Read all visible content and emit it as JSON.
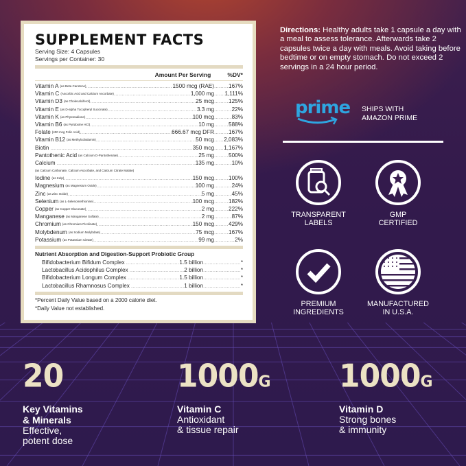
{
  "label": {
    "title": "SUPPLEMENT FACTS",
    "serving_size": "Serving Size: 4 Capsules",
    "servings_per_container": "Servings per Container: 30",
    "col_amount": "Amount Per Serving",
    "col_dv": "%DV*",
    "nutrients": [
      {
        "name": "Vitamin A",
        "source": "(as Beta Carotene)",
        "amount": "1500 mcg (RAE)",
        "dv": "167%"
      },
      {
        "name": "Vitamin C",
        "source": "(Ascorbic Acid and Calcium Ascorbate)",
        "amount": "1,000 mg",
        "dv": "1,111%"
      },
      {
        "name": "Vitamin D3",
        "source": "(as Cholecalciferol)",
        "amount": "25 mcg",
        "dv": "125%"
      },
      {
        "name": "Vitamin E",
        "source": "(as D-alpha Tocopheryl Succinate)",
        "amount": "3.3 mg",
        "dv": "22%"
      },
      {
        "name": "Vitamin K",
        "source": "(as Phytonadione)",
        "amount": "100 mcg",
        "dv": "83%"
      },
      {
        "name": "Vitamin B6",
        "source": "(as Pyridoxine HCl)",
        "amount": "10 mg",
        "dv": "588%"
      },
      {
        "name": "Folate",
        "source": "(400 mcg Folic Acid)",
        "amount": "666.67 mcg DFR",
        "dv": "167%"
      },
      {
        "name": "Vitamin B12",
        "source": "(as Methylcobalamin)",
        "amount": "50 mcg",
        "dv": "2,083%"
      },
      {
        "name": "Biotin",
        "source": "",
        "amount": "350 mcg",
        "dv": "1,167%"
      },
      {
        "name": "Pantothenic Acid",
        "source": "(as Calcium D-Pantothenate)",
        "amount": "25 mg",
        "dv": "500%"
      },
      {
        "name": "Calcium",
        "source": "",
        "amount": "135 mg",
        "dv": "10%"
      }
    ],
    "calcium_note": "(as Calcium Carbonate, Calcium Ascorbate, and Calcium Citrate Malate)",
    "minerals": [
      {
        "name": "Iodine",
        "source": "(as Kelp)",
        "amount": "150 mcg",
        "dv": "100%"
      },
      {
        "name": "Magnesium",
        "source": "(as Magnesium Oxide)",
        "amount": "100 mg",
        "dv": "24%"
      },
      {
        "name": "Zinc",
        "source": "(as Zinc Oxide)",
        "amount": "5 mg",
        "dv": "45%"
      },
      {
        "name": "Selenium",
        "source": "(as L-Selenomethionine)",
        "amount": "100 mcg",
        "dv": "182%"
      },
      {
        "name": "Copper",
        "source": "(as Copper Gluconate)",
        "amount": "2 mg",
        "dv": "222%"
      },
      {
        "name": "Manganese",
        "source": "(as Manganese Sulfate)",
        "amount": "2 mg",
        "dv": "87%"
      },
      {
        "name": "Chromium",
        "source": "(as Chromium Picolinate)",
        "amount": "150 mcg",
        "dv": "429%"
      },
      {
        "name": "Molybdenum",
        "source": "(as Sodium Molybdate)",
        "amount": "75 mcg",
        "dv": "167%"
      },
      {
        "name": "Potassium",
        "source": "(as Potassium Citrate)",
        "amount": "99 mg",
        "dv": "2%"
      }
    ],
    "probiotic_title": "Nutrient Absorption and Digestion-Support Probiotic Group",
    "probiotics": [
      {
        "name": "Bifidobacterium Bifidum Complex",
        "source": "",
        "amount": "1.5 billion",
        "dv": "*"
      },
      {
        "name": "Lactobacillus Acidophilus Complex",
        "source": "",
        "amount": "2 billion",
        "dv": "*"
      },
      {
        "name": "Bifidobacterium Longum Complex",
        "source": "",
        "amount": "1.5 billion",
        "dv": "*"
      },
      {
        "name": "Lactobacillus Rhamnosus Complex",
        "source": "",
        "amount": "1 billion",
        "dv": "*"
      }
    ],
    "footnote1": "*Percent Daily Value based on a 2000 calorie diet.",
    "footnote2": "*Daily Value not established."
  },
  "directions": {
    "heading": "Directions:",
    "text": " Healthy adults take 1 capsule a day with a meal to assess tolerance. Afterwards take 2 capsules twice a day with meals. Avoid taking before bedtime or on empty stomach. Do not exceed 2 servings in a 24 hour period."
  },
  "prime": {
    "logo": "prime",
    "line1": "SHIPS WITH",
    "line2": "AMAZON PRIME",
    "color": "#2ea5e0"
  },
  "badges": [
    {
      "icon": "magnifier-jar-icon",
      "line1": "TRANSPARENT",
      "line2": "LABELS"
    },
    {
      "icon": "award-ribbon-icon",
      "line1": "GMP",
      "line2": "CERTIFIED"
    },
    {
      "icon": "checkmark-icon",
      "line1": "PREMIUM",
      "line2": "INGREDIENTS"
    },
    {
      "icon": "us-flag-icon",
      "line1": "MANUFACTURED",
      "line2": "IN U.S.A."
    }
  ],
  "stats": [
    {
      "value": "20",
      "unit": "",
      "title1": "Key Vitamins",
      "title2": "& Minerals",
      "desc1": "Effective,",
      "desc2": "potent dose"
    },
    {
      "value": "1000",
      "unit": "G",
      "title1": "Vitamin C",
      "title2": "",
      "desc1": "Antioxidant",
      "desc2": "& tissue repair"
    },
    {
      "value": "1000",
      "unit": "G",
      "title1": "Vitamin D",
      "title2": "",
      "desc1": "Strong bones",
      "desc2": "& immunity"
    }
  ]
}
